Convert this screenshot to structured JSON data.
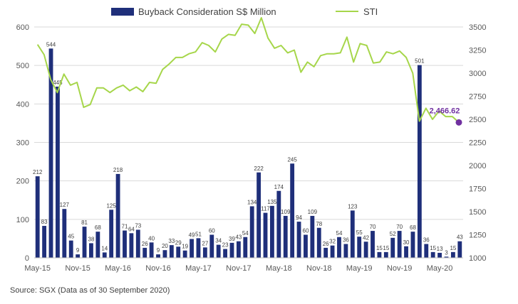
{
  "chart_data": {
    "type": "bar+line",
    "legend": {
      "bars": "Buyback Consideration S$ Million",
      "line": "STI"
    },
    "colors": {
      "bar": "#1f2f7a",
      "line": "#a6d64a",
      "marker": "#7030a0",
      "grid": "#d9d9d9",
      "annotation": "#7030a0"
    },
    "y_left": {
      "min": 0,
      "max": 600,
      "ticks": [
        0,
        100,
        200,
        300,
        400,
        500,
        600
      ]
    },
    "y_right": {
      "min": 1000,
      "max": 3500,
      "ticks": [
        1000,
        1250,
        1500,
        1750,
        2000,
        2250,
        2500,
        2750,
        3000,
        3250,
        3500
      ]
    },
    "x_tick_labels": [
      "May-15",
      "Nov-15",
      "May-16",
      "Nov-16",
      "May-17",
      "Nov-17",
      "May-18",
      "Nov-18",
      "May-19",
      "Nov-19",
      "May-20"
    ],
    "bar_values": [
      212,
      83,
      544,
      445,
      127,
      45,
      9,
      81,
      38,
      68,
      14,
      125,
      218,
      71,
      64,
      73,
      26,
      40,
      9,
      20,
      33,
      29,
      19,
      49,
      51,
      27,
      60,
      34,
      23,
      39,
      43,
      54,
      134,
      222,
      117,
      135,
      174,
      109,
      245,
      94,
      60,
      109,
      78,
      26,
      32,
      54,
      36,
      123,
      55,
      42,
      70,
      15,
      15,
      52,
      70,
      30,
      68,
      501,
      36,
      15,
      13,
      3,
      15,
      43
    ],
    "line_values": [
      3310,
      3200,
      2930,
      2790,
      2990,
      2870,
      2900,
      2630,
      2660,
      2840,
      2840,
      2790,
      2840,
      2870,
      2810,
      2850,
      2800,
      2900,
      2890,
      3040,
      3100,
      3170,
      3170,
      3210,
      3230,
      3330,
      3300,
      3230,
      3370,
      3420,
      3410,
      3530,
      3520,
      3430,
      3600,
      3380,
      3270,
      3300,
      3220,
      3250,
      3010,
      3120,
      3070,
      3190,
      3210,
      3210,
      3220,
      3390,
      3120,
      3320,
      3300,
      3110,
      3120,
      3230,
      3210,
      3240,
      3170,
      3000,
      2480,
      2620,
      2500,
      2590,
      2530,
      2530,
      2466.62
    ],
    "end_annotation": "2,466.62"
  },
  "source_note": "Source: SGX (Data as of 30 September 2020)"
}
